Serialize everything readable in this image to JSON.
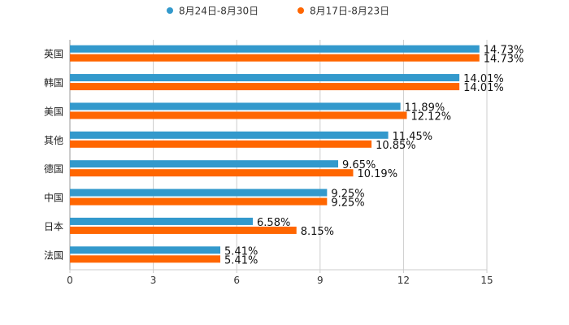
{
  "chart_data": {
    "type": "bar",
    "orientation": "horizontal",
    "title": "",
    "xlabel": "",
    "ylabel": "",
    "xlim": [
      0,
      15
    ],
    "xticks": [
      0,
      3,
      6,
      9,
      12,
      15
    ],
    "grid": "vertical",
    "legend_position": "top-center",
    "categories": [
      "英国",
      "韩国",
      "美国",
      "其他",
      "德国",
      "中国",
      "日本",
      "法国"
    ],
    "series": [
      {
        "name": "8月24日-8月30日",
        "color": "#3399cc",
        "values": [
          14.73,
          14.01,
          11.89,
          11.45,
          9.65,
          9.25,
          6.58,
          5.41
        ],
        "labels": [
          "14.73%",
          "14.01%",
          "11.89%",
          "11.45%",
          "9.65%",
          "9.25%",
          "6.58%",
          "5.41%"
        ]
      },
      {
        "name": "8月17日-8月23日",
        "color": "#ff6600",
        "values": [
          14.73,
          14.01,
          12.12,
          10.85,
          10.19,
          9.25,
          8.15,
          5.41
        ],
        "labels": [
          "14.73%",
          "14.01%",
          "12.12%",
          "10.85%",
          "10.19%",
          "9.25%",
          "8.15%",
          "5.41%"
        ]
      }
    ]
  }
}
